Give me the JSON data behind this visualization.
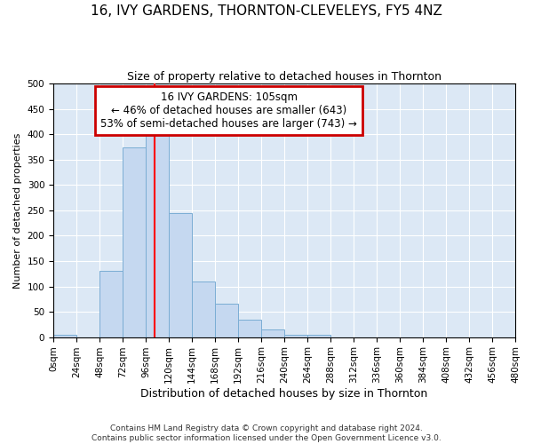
{
  "title": "16, IVY GARDENS, THORNTON-CLEVELEYS, FY5 4NZ",
  "subtitle": "Size of property relative to detached houses in Thornton",
  "xlabel": "Distribution of detached houses by size in Thornton",
  "ylabel": "Number of detached properties",
  "bar_color": "#c5d8f0",
  "bar_edge_color": "#7aadd4",
  "background_color": "#dce8f5",
  "bin_edges": [
    0,
    24,
    48,
    72,
    96,
    120,
    144,
    168,
    192,
    216,
    240,
    264,
    288,
    312,
    336,
    360,
    384,
    408,
    432,
    456,
    480
  ],
  "bar_heights": [
    5,
    0,
    130,
    375,
    415,
    245,
    110,
    65,
    35,
    15,
    5,
    5,
    0,
    0,
    0,
    0,
    0,
    0,
    0,
    0
  ],
  "red_line_x": 105,
  "annotation_text": "16 IVY GARDENS: 105sqm\n← 46% of detached houses are smaller (643)\n53% of semi-detached houses are larger (743) →",
  "annotation_box_color": "#ffffff",
  "annotation_box_edge_color": "#cc0000",
  "ylim": [
    0,
    500
  ],
  "xlim": [
    0,
    480
  ],
  "footer_text": "Contains HM Land Registry data © Crown copyright and database right 2024.\nContains public sector information licensed under the Open Government Licence v3.0.",
  "tick_interval": 24,
  "title_fontsize": 11,
  "subtitle_fontsize": 9,
  "ylabel_fontsize": 8,
  "xlabel_fontsize": 9,
  "tick_fontsize": 7.5,
  "footer_fontsize": 6.5
}
